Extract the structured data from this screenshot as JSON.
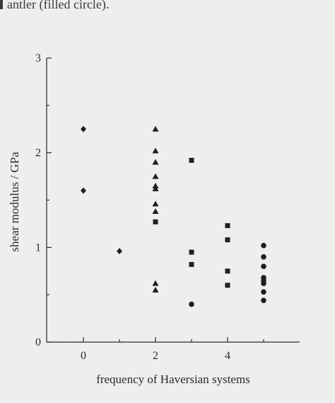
{
  "caption_fragment": "antler (filled circle).",
  "chart_data": {
    "type": "scatter",
    "xlabel": "frequency of Haversian systems",
    "ylabel": "shear modulus / GPa",
    "xlim": [
      -1,
      6
    ],
    "ylim": [
      0,
      3
    ],
    "x_ticks": [
      0,
      2,
      4
    ],
    "x_minor_ticks": [
      1,
      3,
      5
    ],
    "y_ticks": [
      0,
      1,
      2,
      3
    ],
    "y_minor_ticks": [
      0.5,
      1.5,
      2.5
    ],
    "grid": false,
    "legend": "none",
    "series": [
      {
        "marker": "diamond",
        "points": [
          [
            0,
            2.25
          ],
          [
            0,
            1.6
          ],
          [
            1,
            0.96
          ]
        ]
      },
      {
        "marker": "triangle",
        "points": [
          [
            2,
            2.25
          ],
          [
            2,
            2.02
          ],
          [
            2,
            1.9
          ],
          [
            2,
            1.75
          ],
          [
            2,
            1.65
          ],
          [
            2,
            1.62
          ],
          [
            2,
            1.46
          ],
          [
            2,
            1.38
          ],
          [
            2,
            0.62
          ],
          [
            2,
            0.55
          ]
        ]
      },
      {
        "marker": "square",
        "points": [
          [
            2,
            1.27
          ],
          [
            3,
            1.92
          ],
          [
            3,
            0.95
          ],
          [
            3,
            0.82
          ],
          [
            4,
            1.23
          ],
          [
            4,
            1.08
          ],
          [
            4,
            0.75
          ],
          [
            4,
            0.6
          ]
        ]
      },
      {
        "marker": "circle",
        "points": [
          [
            3,
            0.4
          ],
          [
            5,
            1.02
          ],
          [
            5,
            0.9
          ],
          [
            5,
            0.8
          ],
          [
            5,
            0.68
          ],
          [
            5,
            0.65
          ],
          [
            5,
            0.62
          ],
          [
            5,
            0.53
          ],
          [
            5,
            0.44
          ]
        ]
      }
    ]
  }
}
